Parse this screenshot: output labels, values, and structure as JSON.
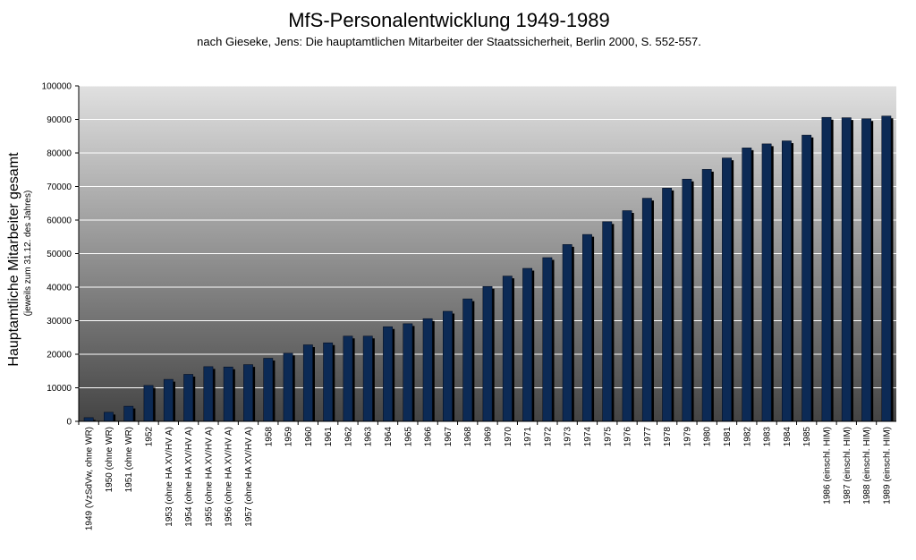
{
  "chart_data": {
    "type": "bar",
    "title": "MfS-Personalentwicklung 1949-1989",
    "subtitle": "nach Gieseke, Jens: Die hauptamtlichen Mitarbeiter der Staatssicherheit, Berlin 2000, S. 552-557.",
    "ylabel": "Hauptamtliche Mitarbeiter gesamt",
    "ylabel_sub": "(jeweils zum 31.12. des Jahres)",
    "xlabel": "",
    "ylim": [
      0,
      100000
    ],
    "yticks": [
      "0",
      "10000",
      "20000",
      "30000",
      "40000",
      "50000",
      "60000",
      "70000",
      "80000",
      "90000",
      "100000"
    ],
    "grid": true,
    "legend": "none",
    "colors": {
      "bar": "#0c2a55",
      "bar_shadow": "#000000",
      "bg_top": "#e0e0e0",
      "bg_bottom": "#444444",
      "grid": "#ffffff"
    },
    "categories": [
      "1949 (VzSdVw, ohne WR)",
      "1950 (ohne WR)",
      "1951 (ohne WR)",
      "1952",
      "1953 (ohne HA XV/HV A)",
      "1954 (ohne HA XV/HV A)",
      "1955 (ohne HA XV/HV A)",
      "1956 (ohne HA XV/HV A)",
      "1957 (ohne HA XV/HV A)",
      "1958",
      "1959",
      "1960",
      "1961",
      "1962",
      "1963",
      "1964",
      "1965",
      "1966",
      "1967",
      "1968",
      "1969",
      "1970",
      "1971",
      "1972",
      "1973",
      "1974",
      "1975",
      "1976",
      "1977",
      "1978",
      "1979",
      "1980",
      "1981",
      "1982",
      "1983",
      "1984",
      "1985",
      "1986 (einschl. HIM)",
      "1987 (einschl. HIM)",
      "1988 (einschl. HIM)",
      "1989 (einschl. HIM)"
    ],
    "values": [
      1100,
      2700,
      4500,
      10700,
      12500,
      14000,
      16300,
      16200,
      16900,
      18800,
      20300,
      22800,
      23400,
      25400,
      25400,
      28200,
      29100,
      30600,
      32800,
      36500,
      40200,
      43300,
      45600,
      48800,
      52700,
      55700,
      59500,
      62800,
      66500,
      69500,
      72200,
      75100,
      78500,
      81500,
      82700,
      83600,
      85300,
      90600,
      90500,
      90200,
      91000
    ]
  }
}
